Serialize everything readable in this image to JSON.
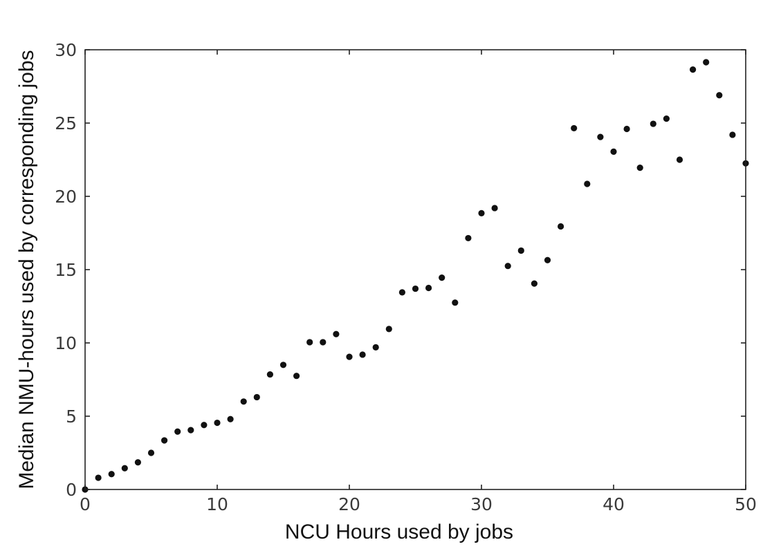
{
  "chart_data": {
    "type": "scatter",
    "title": "",
    "xlabel": "NCU Hours used by jobs",
    "ylabel": "Median NMU-hours used by corresponding jobs",
    "xlim": [
      0,
      50
    ],
    "ylim": [
      0,
      30
    ],
    "xticks": [
      0,
      10,
      20,
      30,
      40,
      50
    ],
    "yticks": [
      0,
      5,
      10,
      15,
      20,
      25,
      30
    ],
    "grid": false,
    "marker_color": "#111111",
    "x": [
      0,
      1,
      2,
      3,
      4,
      5,
      6,
      7,
      8,
      9,
      10,
      11,
      12,
      13,
      14,
      15,
      16,
      17,
      18,
      19,
      20,
      21,
      22,
      23,
      24,
      25,
      26,
      27,
      28,
      29,
      30,
      31,
      32,
      33,
      34,
      35,
      36,
      37,
      38,
      39,
      40,
      41,
      42,
      43,
      44,
      45,
      46,
      47,
      48,
      49,
      50
    ],
    "y": [
      0.0,
      0.8,
      1.05,
      1.45,
      1.85,
      2.5,
      3.35,
      3.95,
      4.05,
      4.4,
      4.55,
      4.8,
      6.0,
      6.3,
      7.85,
      8.5,
      7.75,
      10.05,
      10.05,
      10.6,
      9.05,
      9.2,
      9.7,
      10.95,
      13.45,
      13.7,
      13.75,
      14.45,
      12.75,
      17.15,
      18.85,
      19.2,
      15.25,
      16.3,
      14.05,
      15.65,
      17.95,
      24.65,
      20.85,
      24.05,
      23.05,
      24.6,
      21.95,
      24.95,
      25.3,
      22.5,
      28.65,
      29.15,
      26.9,
      24.2,
      22.25
    ]
  }
}
